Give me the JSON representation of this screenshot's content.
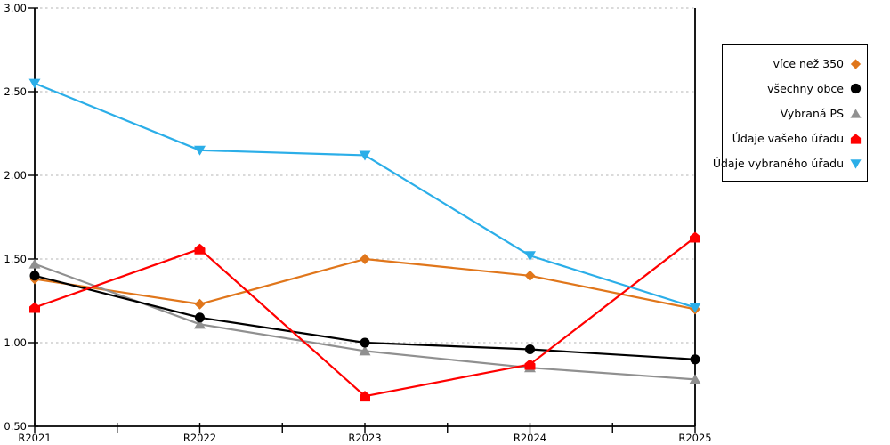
{
  "chart_data": {
    "type": "line",
    "title": "",
    "xlabel": "",
    "ylabel": "",
    "x": [
      "R2021",
      "R2022",
      "R2023",
      "R2024",
      "R2025"
    ],
    "ylim": [
      0.5,
      3.0
    ],
    "ytick_step": 0.5,
    "ytick_labels": [
      "0.50",
      "1.00",
      "1.50",
      "2.00",
      "2.50",
      "3.00"
    ],
    "grid": "horizontal dashed gridlines at every 0.50 from 1.00 to 3.00",
    "x_minor_ticks": "one minor tick midway between each year tick",
    "legend_position": "boxed, outside plot at top right",
    "series": [
      {
        "name": "více než 350",
        "marker": "diamond",
        "color": "#E0761B",
        "values": [
          1.38,
          1.23,
          1.5,
          1.4,
          1.2
        ]
      },
      {
        "name": "všechny obce",
        "marker": "circle",
        "color": "#000000",
        "values": [
          1.4,
          1.15,
          1.0,
          0.96,
          0.9
        ]
      },
      {
        "name": "Vybraná PS",
        "marker": "triangle-up",
        "color": "#909090",
        "values": [
          1.47,
          1.11,
          0.95,
          0.85,
          0.78
        ]
      },
      {
        "name": "Údaje vašeho úřadu",
        "marker": "pentagon",
        "color": "#FF0000",
        "values": [
          1.21,
          1.56,
          0.68,
          0.87,
          1.63
        ]
      },
      {
        "name": "Údaje vybraného úřadu",
        "marker": "triangle-down",
        "color": "#2BAEE8",
        "values": [
          2.55,
          2.15,
          2.12,
          1.52,
          1.21
        ]
      }
    ],
    "draw_order_note": "orange bottom, then gray, black, red, blue on top",
    "colors": {
      "axis": "#000000",
      "gridline": "#b5b5b5",
      "legend_border": "#000000",
      "background": "#ffffff"
    }
  }
}
